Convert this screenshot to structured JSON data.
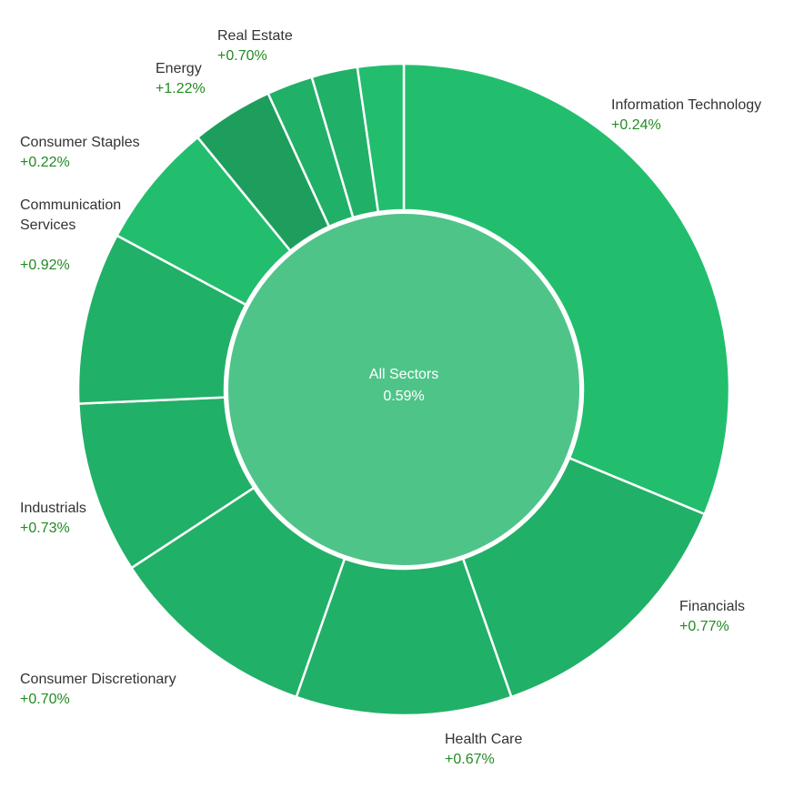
{
  "chart_data": {
    "type": "pie",
    "center": {
      "label": "All Sectors",
      "value": "0.59%"
    },
    "slices": [
      {
        "name": "Information Technology",
        "change": "+0.24%",
        "weight": 31.5,
        "color": "#22be6e"
      },
      {
        "name": "Financials",
        "change": "+0.77%",
        "weight": 13.5,
        "color": "#21b067"
      },
      {
        "name": "Health Care",
        "change": "+0.67%",
        "weight": 10.8,
        "color": "#21b067"
      },
      {
        "name": "Consumer Discretionary",
        "change": "+0.70%",
        "weight": 10.5,
        "color": "#21b067"
      },
      {
        "name": "Industrials",
        "change": "+0.73%",
        "weight": 8.6,
        "color": "#21b067"
      },
      {
        "name": "",
        "change": "",
        "weight": 8.6,
        "color": "#21b067"
      },
      {
        "name": "Communication Services",
        "change": "+0.92%",
        "weight": 6.3,
        "color": "#22be6e"
      },
      {
        "name": "Energy",
        "change": "+1.22%",
        "weight": 4.1,
        "color": "#1e9e5d"
      },
      {
        "name": "",
        "change": "",
        "weight": 2.3,
        "color": "#21b067"
      },
      {
        "name": "Real Estate",
        "change": "+0.70%",
        "weight": 2.3,
        "color": "#21b067"
      },
      {
        "name": "Consumer Staples",
        "change": "+0.22%",
        "weight": 2.3,
        "color": "#22be6e"
      }
    ],
    "colors": {
      "center": "#4fc489",
      "separator": "#ffffff",
      "positive_text": "#228b22"
    }
  },
  "labels": {
    "it": {
      "name": "Information Technology",
      "change": "+0.24%"
    },
    "financials": {
      "name": "Financials",
      "change": "+0.77%"
    },
    "health_care": {
      "name": "Health Care",
      "change": "+0.67%"
    },
    "consumer_discretionary": {
      "name": "Consumer Discretionary",
      "change": "+0.70%"
    },
    "industrials": {
      "name": "Industrials",
      "change": "+0.73%"
    },
    "communication_services": {
      "name": "Communication\nServices",
      "change": "+0.92%"
    },
    "consumer_staples": {
      "name": "Consumer Staples",
      "change": "+0.22%"
    },
    "energy": {
      "name": "Energy",
      "change": "+1.22%"
    },
    "real_estate": {
      "name": "Real Estate",
      "change": "+0.70%"
    }
  }
}
